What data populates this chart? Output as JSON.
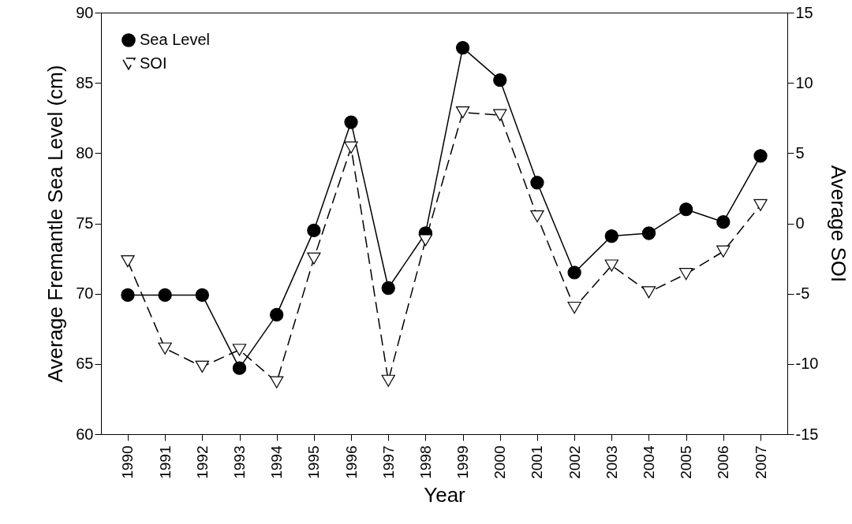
{
  "chart_data": {
    "type": "line",
    "xlabel": "Year",
    "ylabel": "Average Fremantle Sea Level (cm)",
    "y2label": "Average SOI",
    "categories": [
      "1990",
      "1991",
      "1992",
      "1993",
      "1994",
      "1995",
      "1996",
      "1997",
      "1998",
      "1999",
      "2000",
      "2001",
      "2002",
      "2003",
      "2004",
      "2005",
      "2006",
      "2007"
    ],
    "series": [
      {
        "name": "Sea Level",
        "color": "#000000",
        "marker": "circle",
        "line_style": "solid",
        "values": [
          69.9,
          69.9,
          69.9,
          64.7,
          68.5,
          74.5,
          82.2,
          70.4,
          74.3,
          87.5,
          85.2,
          77.9,
          71.5,
          74.1,
          74.3,
          76.0,
          75.1,
          79.8
        ]
      },
      {
        "name": "SOI",
        "color": "#000000",
        "marker": "triangle",
        "line_style": "dashed",
        "axis": "y2",
        "values": [
          -2.7,
          -8.9,
          -10.2,
          -9.0,
          -11.3,
          -2.5,
          5.4,
          -11.2,
          -1.2,
          7.9,
          7.7,
          0.5,
          -6.0,
          -3.0,
          -4.9,
          -3.6,
          -2.0,
          1.3
        ]
      }
    ],
    "ylim": [
      60,
      90
    ],
    "yticks": [
      60,
      65,
      70,
      75,
      80,
      85,
      90
    ],
    "y2lim": [
      -15,
      15
    ],
    "y2ticks": [
      -15,
      -10,
      -5,
      0,
      5,
      10,
      15
    ],
    "grid": false,
    "legend": "top left"
  }
}
